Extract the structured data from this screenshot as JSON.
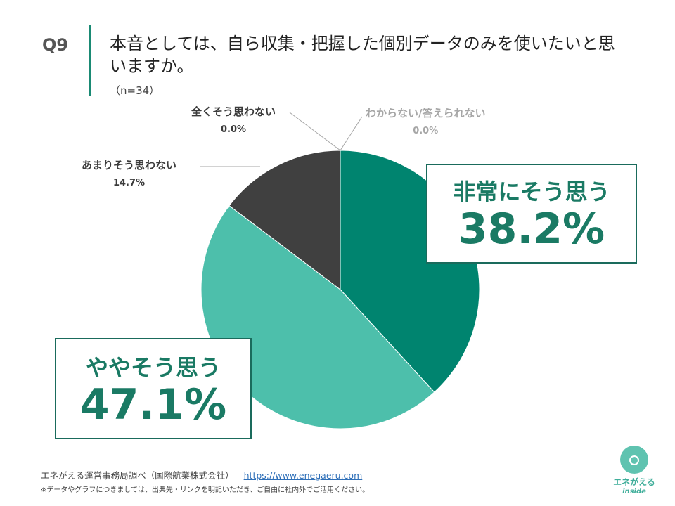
{
  "header": {
    "question_no": "Q9",
    "title": "本音としては、自ら収集・把握した個別データのみを使いたいと思いますか。",
    "sample": "（n=34）"
  },
  "chart_data": {
    "type": "pie",
    "title": "本音としては、自ら収集・把握した個別データのみを使いたいと思いますか。",
    "n": 34,
    "start_angle_deg": 0,
    "direction": "clockwise",
    "slices": [
      {
        "label": "非常にそう思う",
        "value": 38.2,
        "display": "38.2%",
        "color": "#00846f"
      },
      {
        "label": "ややそう思う",
        "value": 47.1,
        "display": "47.1%",
        "color": "#4dbfab"
      },
      {
        "label": "あまりそう思わない",
        "value": 14.7,
        "display": "14.7%",
        "color": "#404040"
      },
      {
        "label": "全くそう思わない",
        "value": 0.0,
        "display": "0.0%",
        "color": "#bfbfbf"
      },
      {
        "label": "わからない/答えられない",
        "value": 0.0,
        "display": "0.0%",
        "color": "#bfbfbf"
      }
    ]
  },
  "footer": {
    "source": "エネがえる運営事務局調べ（国際航業株式会社）",
    "url": "https://www.enegaeru.com",
    "note": "※データやグラフにつきましては、出典先・リンクを明記いただき、ご自由に社内外でご活用ください。"
  },
  "logo": {
    "name": "エネがえる",
    "sub": "inside"
  }
}
